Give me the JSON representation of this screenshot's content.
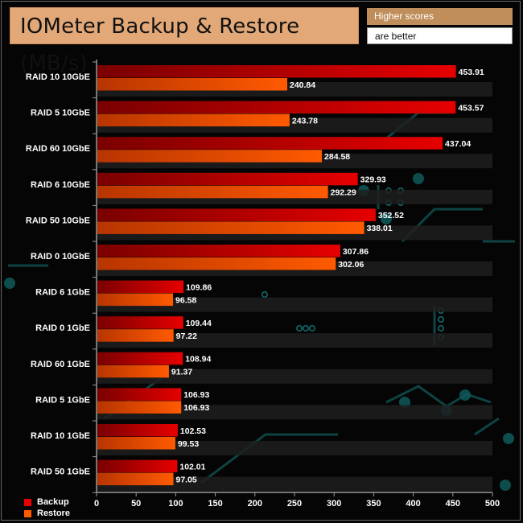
{
  "header": {
    "title": "IOMeter Backup & Restore (MB/s)",
    "note_line1": "Higher scores",
    "note_line2": "are better"
  },
  "colors": {
    "backup": "#e60000",
    "restore": "#ff5a00",
    "title_bg": "#e2a877",
    "note_bg": "#bf8e5a"
  },
  "chart_data": {
    "type": "bar",
    "orientation": "horizontal",
    "title": "IOMeter Backup & Restore (MB/s)",
    "categories": [
      "RAID 10 10GbE",
      "RAID 5 10GbE",
      "RAID 60 10GbE",
      "RAID 6 10GbE",
      "RAID 50 10GbE",
      "RAID 0 10GbE",
      "RAID 6 1GbE",
      "RAID 0 1GbE",
      "RAID 60 1GbE",
      "RAID 5 1GbE",
      "RAID 10 1GbE",
      "RAID 50 1GbE"
    ],
    "series": [
      {
        "name": "Backup",
        "values": [
          453.91,
          453.57,
          437.04,
          329.93,
          352.52,
          307.86,
          109.86,
          109.44,
          108.94,
          106.93,
          102.53,
          102.01
        ]
      },
      {
        "name": "Restore",
        "values": [
          240.84,
          243.78,
          284.58,
          292.29,
          338.01,
          302.06,
          96.58,
          97.22,
          91.37,
          106.93,
          99.53,
          97.05
        ]
      }
    ],
    "xlim": [
      0,
      500
    ],
    "xticks": [
      "0",
      "50",
      "100",
      "150",
      "200",
      "250",
      "300",
      "350",
      "400",
      "450",
      "500"
    ],
    "grid": false,
    "legend_position": "bottom-left"
  }
}
